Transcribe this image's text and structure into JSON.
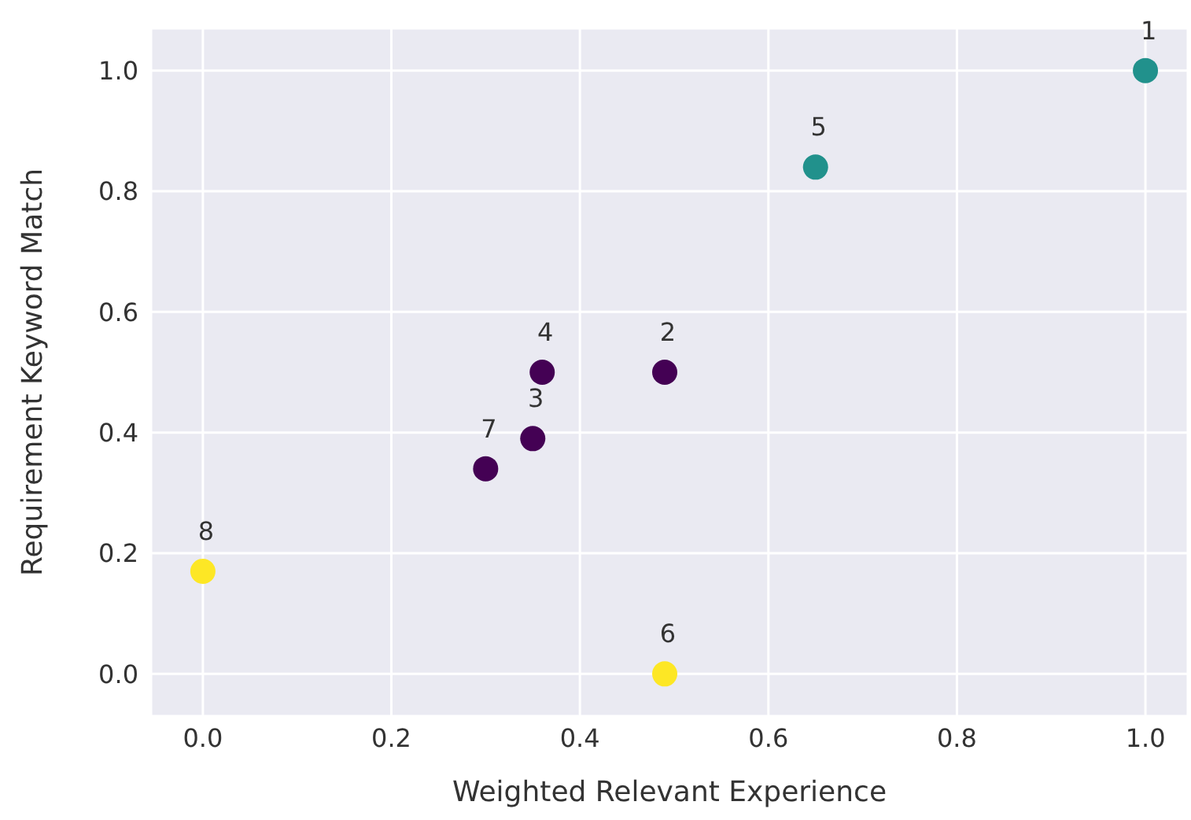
{
  "chart_data": {
    "type": "scatter",
    "xlabel": "Weighted Relevant Experience",
    "ylabel": "Requirement Keyword Match",
    "x": [
      1.0,
      0.49,
      0.35,
      0.36,
      0.65,
      0.49,
      0.3,
      0.0
    ],
    "values": [
      1.0,
      0.5,
      0.39,
      0.5,
      0.84,
      0.0,
      0.34,
      0.17
    ],
    "colors": [
      "#21918c",
      "#440154",
      "#440154",
      "#440154",
      "#21918c",
      "#fde725",
      "#440154",
      "#fde725"
    ],
    "xlim": [
      -0.055,
      1.045
    ],
    "ylim": [
      -0.07,
      1.07
    ],
    "xticks": [
      {
        "value": 0,
        "label": "0.0"
      },
      {
        "value": 0.2,
        "label": "0.2"
      },
      {
        "value": 0.4,
        "label": "0.4"
      },
      {
        "value": 0.6,
        "label": "0.6"
      },
      {
        "value": 0.8,
        "label": "0.8"
      },
      {
        "value": 1,
        "label": "1.0"
      }
    ],
    "yticks": [
      {
        "value": 0,
        "label": "0.0"
      },
      {
        "value": 0.2,
        "label": "0.2"
      },
      {
        "value": 0.4,
        "label": "0.4"
      },
      {
        "value": 0.6,
        "label": "0.6"
      },
      {
        "value": 0.8,
        "label": "0.8"
      },
      {
        "value": 1,
        "label": "1.0"
      }
    ],
    "grid": true,
    "marker": "circle",
    "annotations": [
      {
        "text": "1",
        "x": 1.0,
        "y": 1.0
      },
      {
        "text": "2",
        "x": 0.49,
        "y": 0.5
      },
      {
        "text": "3",
        "x": 0.35,
        "y": 0.39
      },
      {
        "text": "4",
        "x": 0.36,
        "y": 0.5
      },
      {
        "text": "5",
        "x": 0.65,
        "y": 0.84
      },
      {
        "text": "6",
        "x": 0.49,
        "y": 0.0
      },
      {
        "text": "7",
        "x": 0.3,
        "y": 0.34
      },
      {
        "text": "8",
        "x": 0.0,
        "y": 0.17
      }
    ]
  }
}
